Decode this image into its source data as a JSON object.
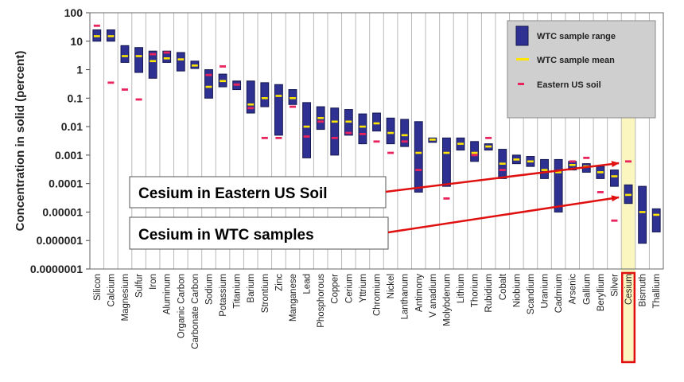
{
  "chart_data": {
    "type": "range-bar",
    "ylabel": "Concentration in solid (percent)",
    "yscale": "log",
    "ylim": [
      1e-07,
      100
    ],
    "ytick_labels": [
      "100",
      "10",
      "1",
      "0.1",
      "0.01",
      "0.001",
      "0.0001",
      "0.00001",
      "0.000001",
      "0.0000001"
    ],
    "categories": [
      "Silicon",
      "Calcium",
      "Magnesium",
      "Sulfur",
      "Iron",
      "Aluminum",
      "Organic Carbon",
      "Carbonate Carbon",
      "Sodium",
      "Potassium",
      "Titanium",
      "Barium",
      "Strontium",
      "Zinc",
      "Manganese",
      "Lead",
      "Phosphorous",
      "Copper",
      "Cerium",
      "Yttrium",
      "Chromium",
      "Nickel",
      "Lanthanum",
      "Antimony",
      "V anadium",
      "Molybdenum",
      "Lithium",
      "Thorium",
      "Rubidium",
      "Cobalt",
      "Niobium",
      "Scandium",
      "Uranium",
      "Cadmium",
      "Arsenic",
      "Gallium",
      "Beryllium",
      "Silver",
      "Cesium",
      "Bismuth",
      "Thallium"
    ],
    "series": [
      {
        "name": "WTC sample range",
        "low": [
          10,
          10,
          1.8,
          0.8,
          0.5,
          1.8,
          0.9,
          1.1,
          0.1,
          0.25,
          0.2,
          0.03,
          0.05,
          0.005,
          0.06,
          0.0008,
          0.008,
          0.001,
          0.005,
          0.0025,
          0.007,
          0.0025,
          0.002,
          5e-05,
          0.0028,
          8e-05,
          0.0015,
          0.0006,
          0.0015,
          0.00015,
          0.0005,
          0.0004,
          0.00015,
          1e-05,
          0.0003,
          0.00025,
          0.00015,
          8e-05,
          2e-05,
          8e-07,
          2e-06
        ],
        "high": [
          25,
          25,
          7,
          6,
          4.5,
          4.5,
          4,
          2,
          1,
          0.7,
          0.4,
          0.4,
          0.35,
          0.3,
          0.2,
          0.07,
          0.05,
          0.045,
          0.04,
          0.028,
          0.03,
          0.02,
          0.018,
          0.015,
          0.004,
          0.004,
          0.004,
          0.003,
          0.0025,
          0.0016,
          0.001,
          0.0009,
          0.0007,
          0.0007,
          0.0006,
          0.0005,
          0.0004,
          0.0003,
          9e-05,
          8e-05,
          1.3e-05
        ]
      },
      {
        "name": "WTC sample mean",
        "values": [
          15,
          15,
          3,
          3,
          2,
          2.5,
          2.3,
          1.4,
          0.25,
          0.4,
          0.3,
          0.06,
          0.1,
          0.12,
          0.1,
          0.01,
          0.02,
          0.015,
          0.015,
          0.01,
          0.013,
          0.006,
          0.005,
          0.0012,
          0.0035,
          0.0012,
          0.0025,
          0.0012,
          0.002,
          0.0005,
          0.0007,
          0.0006,
          0.0003,
          0.00025,
          0.00045,
          0.0004,
          0.00025,
          0.00018,
          4e-05,
          1e-05,
          8e-06
        ]
      },
      {
        "name": "Eastern US soil",
        "values": [
          35,
          0.35,
          0.2,
          0.09,
          3.5,
          4,
          null,
          null,
          0.65,
          1.3,
          0.3,
          0.045,
          0.004,
          0.004,
          0.05,
          0.0045,
          0.015,
          0.004,
          0.006,
          0.0055,
          0.003,
          0.0012,
          0.003,
          0.0003,
          null,
          3e-05,
          null,
          0.001,
          0.004,
          0.0003,
          null,
          null,
          null,
          null,
          0.0006,
          0.0008,
          5e-05,
          5e-06,
          0.0006,
          null,
          null
        ]
      }
    ],
    "highlight_category": "Cesium",
    "legend_placement": "top-right",
    "annotations": [
      "Cesium in Eastern US Soil",
      "Cesium in WTC samples"
    ],
    "colors": {
      "range": "#2e3192",
      "range_edge": "#14174f",
      "mean": "#ffe600",
      "soil": "#e8235e",
      "highlight": "#fbf6c0",
      "highlight_box": "#e01010",
      "arrow": "#e01010",
      "legend_bg": "#cfcfcf"
    }
  }
}
